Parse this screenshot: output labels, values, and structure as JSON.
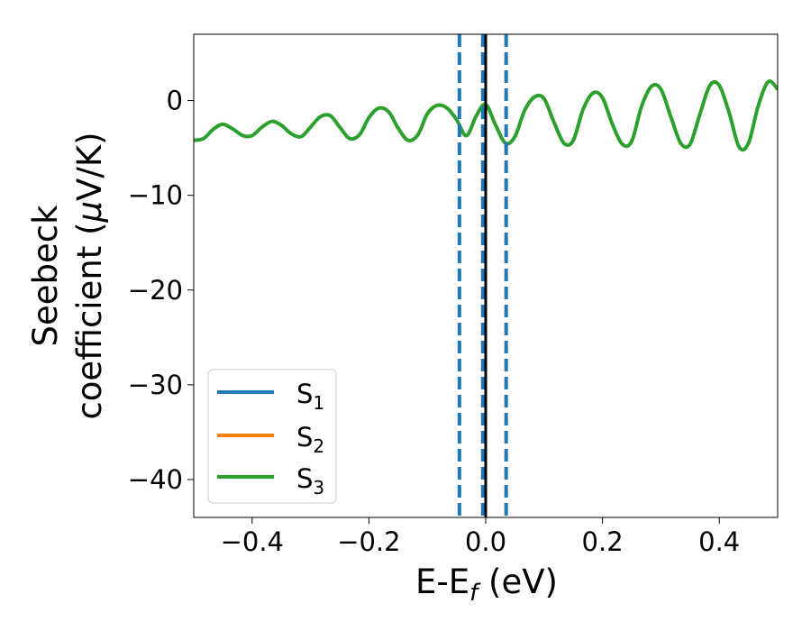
{
  "chart_data": {
    "type": "line",
    "xlabel": {
      "main": "E-E",
      "sub": "f",
      "suffix": " (eV)"
    },
    "ylabel": {
      "line1": "Seebeck",
      "line2_main": "coefficient  (",
      "line2_mu": "μ",
      "line2_suffix": "V/K)"
    },
    "xlim": [
      -0.5,
      0.5
    ],
    "ylim": [
      -44,
      7
    ],
    "xticks": [
      -0.4,
      -0.2,
      0.0,
      0.2,
      0.4
    ],
    "xtick_labels": [
      "−0.4",
      "−0.2",
      "0.0",
      "0.2",
      "0.4"
    ],
    "yticks": [
      0,
      -10,
      -20,
      -30,
      -40
    ],
    "ytick_labels": [
      "0",
      "−10",
      "−20",
      "−30",
      "−40"
    ],
    "grid": false,
    "legend_position": "lower-left",
    "colors": {
      "S1": "#1f77b4",
      "S2": "#ff7f0e",
      "S3": "#2ca02c",
      "fermi": "#000000",
      "window": "#1f77b4"
    },
    "vertical_lines": [
      {
        "x": -0.045,
        "style": "dashed",
        "color": "#1f77b4"
      },
      {
        "x": -0.005,
        "style": "dashed",
        "color": "#1f77b4"
      },
      {
        "x": 0.035,
        "style": "dashed",
        "color": "#1f77b4"
      },
      {
        "x": 0.0,
        "style": "solid",
        "color": "#000000"
      }
    ],
    "series": [
      {
        "name": {
          "main": "S",
          "sub": "1"
        },
        "color": "#1f77b4",
        "x": [],
        "y": []
      },
      {
        "name": {
          "main": "S",
          "sub": "2"
        },
        "color": "#ff7f0e",
        "x": [],
        "y": []
      },
      {
        "name": {
          "main": "S",
          "sub": "3"
        },
        "color": "#2ca02c",
        "x": [
          -0.5,
          -0.483,
          -0.466,
          -0.45,
          -0.433,
          -0.416,
          -0.4,
          -0.383,
          -0.366,
          -0.35,
          -0.333,
          -0.316,
          -0.3,
          -0.283,
          -0.266,
          -0.25,
          -0.233,
          -0.216,
          -0.2,
          -0.183,
          -0.166,
          -0.15,
          -0.133,
          -0.116,
          -0.1,
          -0.083,
          -0.066,
          -0.05,
          -0.033,
          -0.016,
          0.0,
          0.017,
          0.034,
          0.05,
          0.067,
          0.084,
          0.1,
          0.117,
          0.134,
          0.15,
          0.167,
          0.184,
          0.2,
          0.217,
          0.234,
          0.25,
          0.267,
          0.284,
          0.3,
          0.317,
          0.334,
          0.35,
          0.367,
          0.384,
          0.4,
          0.417,
          0.434,
          0.45,
          0.467,
          0.484,
          0.5
        ],
        "y": [
          -4.2,
          -4.0,
          -3.0,
          -2.5,
          -3.0,
          -3.7,
          -3.7,
          -2.8,
          -2.2,
          -2.6,
          -3.5,
          -3.8,
          -2.8,
          -1.7,
          -1.6,
          -2.8,
          -4.0,
          -3.6,
          -1.8,
          -0.8,
          -1.2,
          -2.9,
          -4.2,
          -3.6,
          -1.4,
          -0.5,
          -0.8,
          -2.0,
          -3.7,
          -1.6,
          -0.4,
          -2.6,
          -4.5,
          -3.8,
          -1.0,
          0.4,
          0.2,
          -2.3,
          -4.5,
          -4.2,
          -0.9,
          0.8,
          0.3,
          -2.5,
          -4.6,
          -4.3,
          -0.6,
          1.5,
          1.2,
          -1.7,
          -4.5,
          -4.6,
          -1.4,
          1.6,
          1.6,
          -1.3,
          -4.9,
          -4.5,
          -0.5,
          2.0,
          1.2
        ]
      }
    ]
  }
}
